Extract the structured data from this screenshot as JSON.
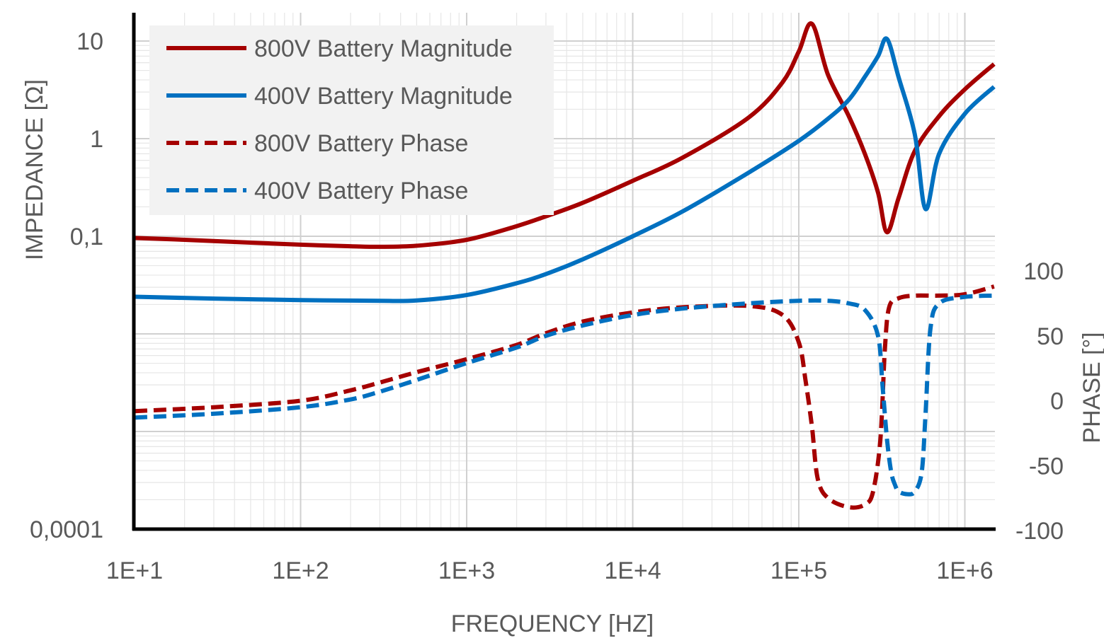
{
  "chart_data": {
    "type": "line",
    "xlabel": "FREQUENCY [HZ]",
    "ylabel": "IMPEDANCE [Ω]",
    "y2label": "PHASE [°]",
    "x_scale": "log",
    "xlim": [
      10,
      1500000
    ],
    "ylim": [
      0.0001,
      20
    ],
    "y_scale": "log",
    "y2lim": [
      -100,
      100
    ],
    "grid": true,
    "legend_position": "top-left",
    "x_ticks": [
      "1E+1",
      "1E+2",
      "1E+3",
      "1E+4",
      "1E+5",
      "1E+6"
    ],
    "y_ticks": [
      "10",
      "1",
      "0,1",
      "0,0001"
    ],
    "y2_ticks": [
      "100",
      "50",
      "0",
      "-50",
      "-100"
    ],
    "series": [
      {
        "name": "800V Battery Magnitude",
        "axis": "left",
        "color": "#A50000",
        "style": "solid",
        "x": [
          10,
          20,
          50,
          100,
          200,
          300,
          500,
          1000,
          2000,
          3000,
          5000,
          10000,
          20000,
          50000,
          80000,
          100000,
          120000,
          150000,
          200000,
          250000,
          300000,
          340000,
          400000,
          500000,
          700000,
          1000000,
          1500000
        ],
        "y": [
          0.096,
          0.092,
          0.086,
          0.082,
          0.079,
          0.078,
          0.08,
          0.092,
          0.127,
          0.16,
          0.22,
          0.37,
          0.64,
          1.65,
          3.8,
          7.8,
          15.0,
          4.5,
          1.7,
          0.7,
          0.28,
          0.11,
          0.25,
          0.75,
          1.7,
          3.2,
          5.8
        ]
      },
      {
        "name": "400V Battery Magnitude",
        "axis": "left",
        "color": "#0070C0",
        "style": "solid",
        "x": [
          10,
          30,
          100,
          300,
          500,
          1000,
          2000,
          3000,
          5000,
          10000,
          20000,
          50000,
          100000,
          150000,
          200000,
          250000,
          300000,
          340000,
          400000,
          500000,
          580000,
          700000,
          1000000,
          1500000
        ],
        "y": [
          0.024,
          0.023,
          0.0222,
          0.0218,
          0.022,
          0.025,
          0.033,
          0.041,
          0.058,
          0.1,
          0.18,
          0.45,
          0.95,
          1.6,
          2.5,
          4.3,
          7.0,
          10.5,
          4.2,
          1.1,
          0.19,
          0.7,
          1.8,
          3.4
        ]
      },
      {
        "name": "800V Battery Phase",
        "axis": "right",
        "color": "#A50000",
        "style": "dashed",
        "x": [
          10,
          30,
          100,
          200,
          300,
          500,
          1000,
          2000,
          3000,
          5000,
          10000,
          20000,
          50000,
          80000,
          100000,
          110000,
          120000,
          130000,
          150000,
          200000,
          250000,
          280000,
          310000,
          330000,
          350000,
          400000,
          500000,
          700000,
          1000000,
          1500000
        ],
        "y": [
          -8,
          -5,
          0,
          8,
          14,
          22,
          32,
          43,
          52,
          61,
          68,
          72,
          73,
          66,
          45,
          15,
          -20,
          -60,
          -75,
          -82,
          -80,
          -70,
          -30,
          40,
          72,
          79,
          81,
          81,
          82,
          88
        ],
        "marker": "none"
      },
      {
        "name": "400V Battery Phase",
        "axis": "right",
        "color": "#0070C0",
        "style": "dashed",
        "x": [
          10,
          30,
          100,
          200,
          300,
          500,
          1000,
          2000,
          3000,
          5000,
          10000,
          20000,
          50000,
          100000,
          150000,
          200000,
          250000,
          300000,
          320000,
          340000,
          360000,
          380000,
          400000,
          450000,
          500000,
          550000,
          580000,
          620000,
          700000,
          1000000,
          1500000
        ],
        "y": [
          -13,
          -10,
          -5,
          1,
          7,
          16,
          29,
          41,
          50,
          58,
          66,
          71,
          75,
          77,
          77,
          75,
          70,
          50,
          10,
          -30,
          -55,
          -65,
          -70,
          -72,
          -70,
          -55,
          -10,
          55,
          75,
          80,
          81
        ]
      }
    ]
  }
}
